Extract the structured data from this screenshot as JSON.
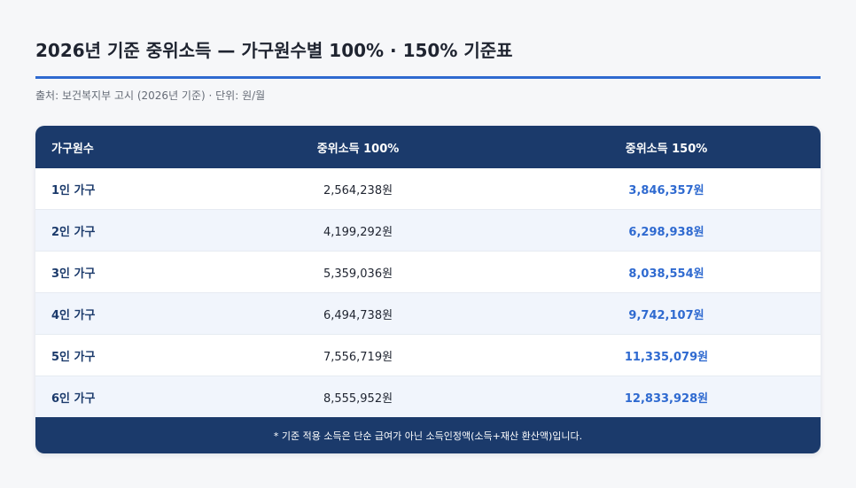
{
  "title": "2026년 기준 중위소득 — 가구원수별 100% · 150% 기준표",
  "source": "출처: 보건복지부 고시 (2026년 기준) · 단위: 원/월",
  "table": {
    "headers": [
      "가구원수",
      "중위소득 100%",
      "중위소득 150%"
    ],
    "rows": [
      {
        "household": "1인 가구",
        "median_100": "2,564,238원",
        "median_150": "3,846,357원"
      },
      {
        "household": "2인 가구",
        "median_100": "4,199,292원",
        "median_150": "6,298,938원"
      },
      {
        "household": "3인 가구",
        "median_100": "5,359,036원",
        "median_150": "8,038,554원"
      },
      {
        "household": "4인 가구",
        "median_100": "6,494,738원",
        "median_150": "9,742,107원"
      },
      {
        "household": "5인 가구",
        "median_100": "7,556,719원",
        "median_150": "11,335,079원"
      },
      {
        "household": "6인 가구",
        "median_100": "8,555,952원",
        "median_150": "12,833,928원"
      }
    ],
    "footnote": "* 기준 적용 소득은 단순 급여가 아닌 소득인정액(소득+재산 환산액)입니다."
  },
  "colors": {
    "header_bg": "#1b3a6b",
    "accent": "#2f6ad0",
    "alt_row": "#f1f5fc"
  }
}
